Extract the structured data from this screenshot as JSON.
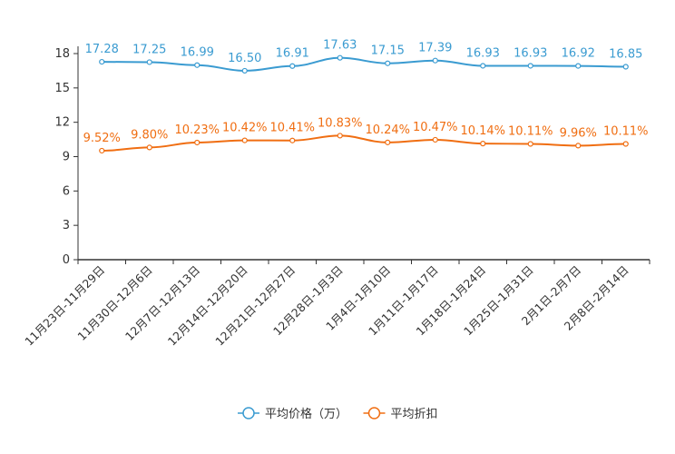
{
  "chart_data": {
    "type": "line",
    "categories": [
      "11月23日-11月29日",
      "11月30日-12月6日",
      "12月7日-12月13日",
      "12月14日-12月20日",
      "12月21日-12月27日",
      "12月28日-1月3日",
      "1月4日-1月10日",
      "1月11日-1月17日",
      "1月18日-1月24日",
      "1月25日-1月31日",
      "2月1日-2月7日",
      "2月8日-2月14日"
    ],
    "series": [
      {
        "name": "平均价格（万）",
        "color": "#3a9bd1",
        "values": [
          17.28,
          17.25,
          16.99,
          16.5,
          16.91,
          17.63,
          17.15,
          17.39,
          16.93,
          16.93,
          16.92,
          16.85
        ],
        "labels": [
          "17.28",
          "17.25",
          "16.99",
          "16.50",
          "16.91",
          "17.63",
          "17.15",
          "17.39",
          "16.93",
          "16.93",
          "16.92",
          "16.85"
        ]
      },
      {
        "name": "平均折扣",
        "color": "#f06e12",
        "values": [
          9.52,
          9.8,
          10.23,
          10.42,
          10.41,
          10.83,
          10.24,
          10.47,
          10.14,
          10.11,
          9.96,
          10.11
        ],
        "labels": [
          "9.52%",
          "9.80%",
          "10.23%",
          "10.42%",
          "10.41%",
          "10.83%",
          "10.24%",
          "10.47%",
          "10.14%",
          "10.11%",
          "9.96%",
          "10.11%"
        ]
      }
    ],
    "yticks": [
      "0",
      "3",
      "6",
      "9",
      "12",
      "15",
      "18"
    ],
    "ylim": [
      0,
      18
    ],
    "legend_position": "bottom-center"
  }
}
